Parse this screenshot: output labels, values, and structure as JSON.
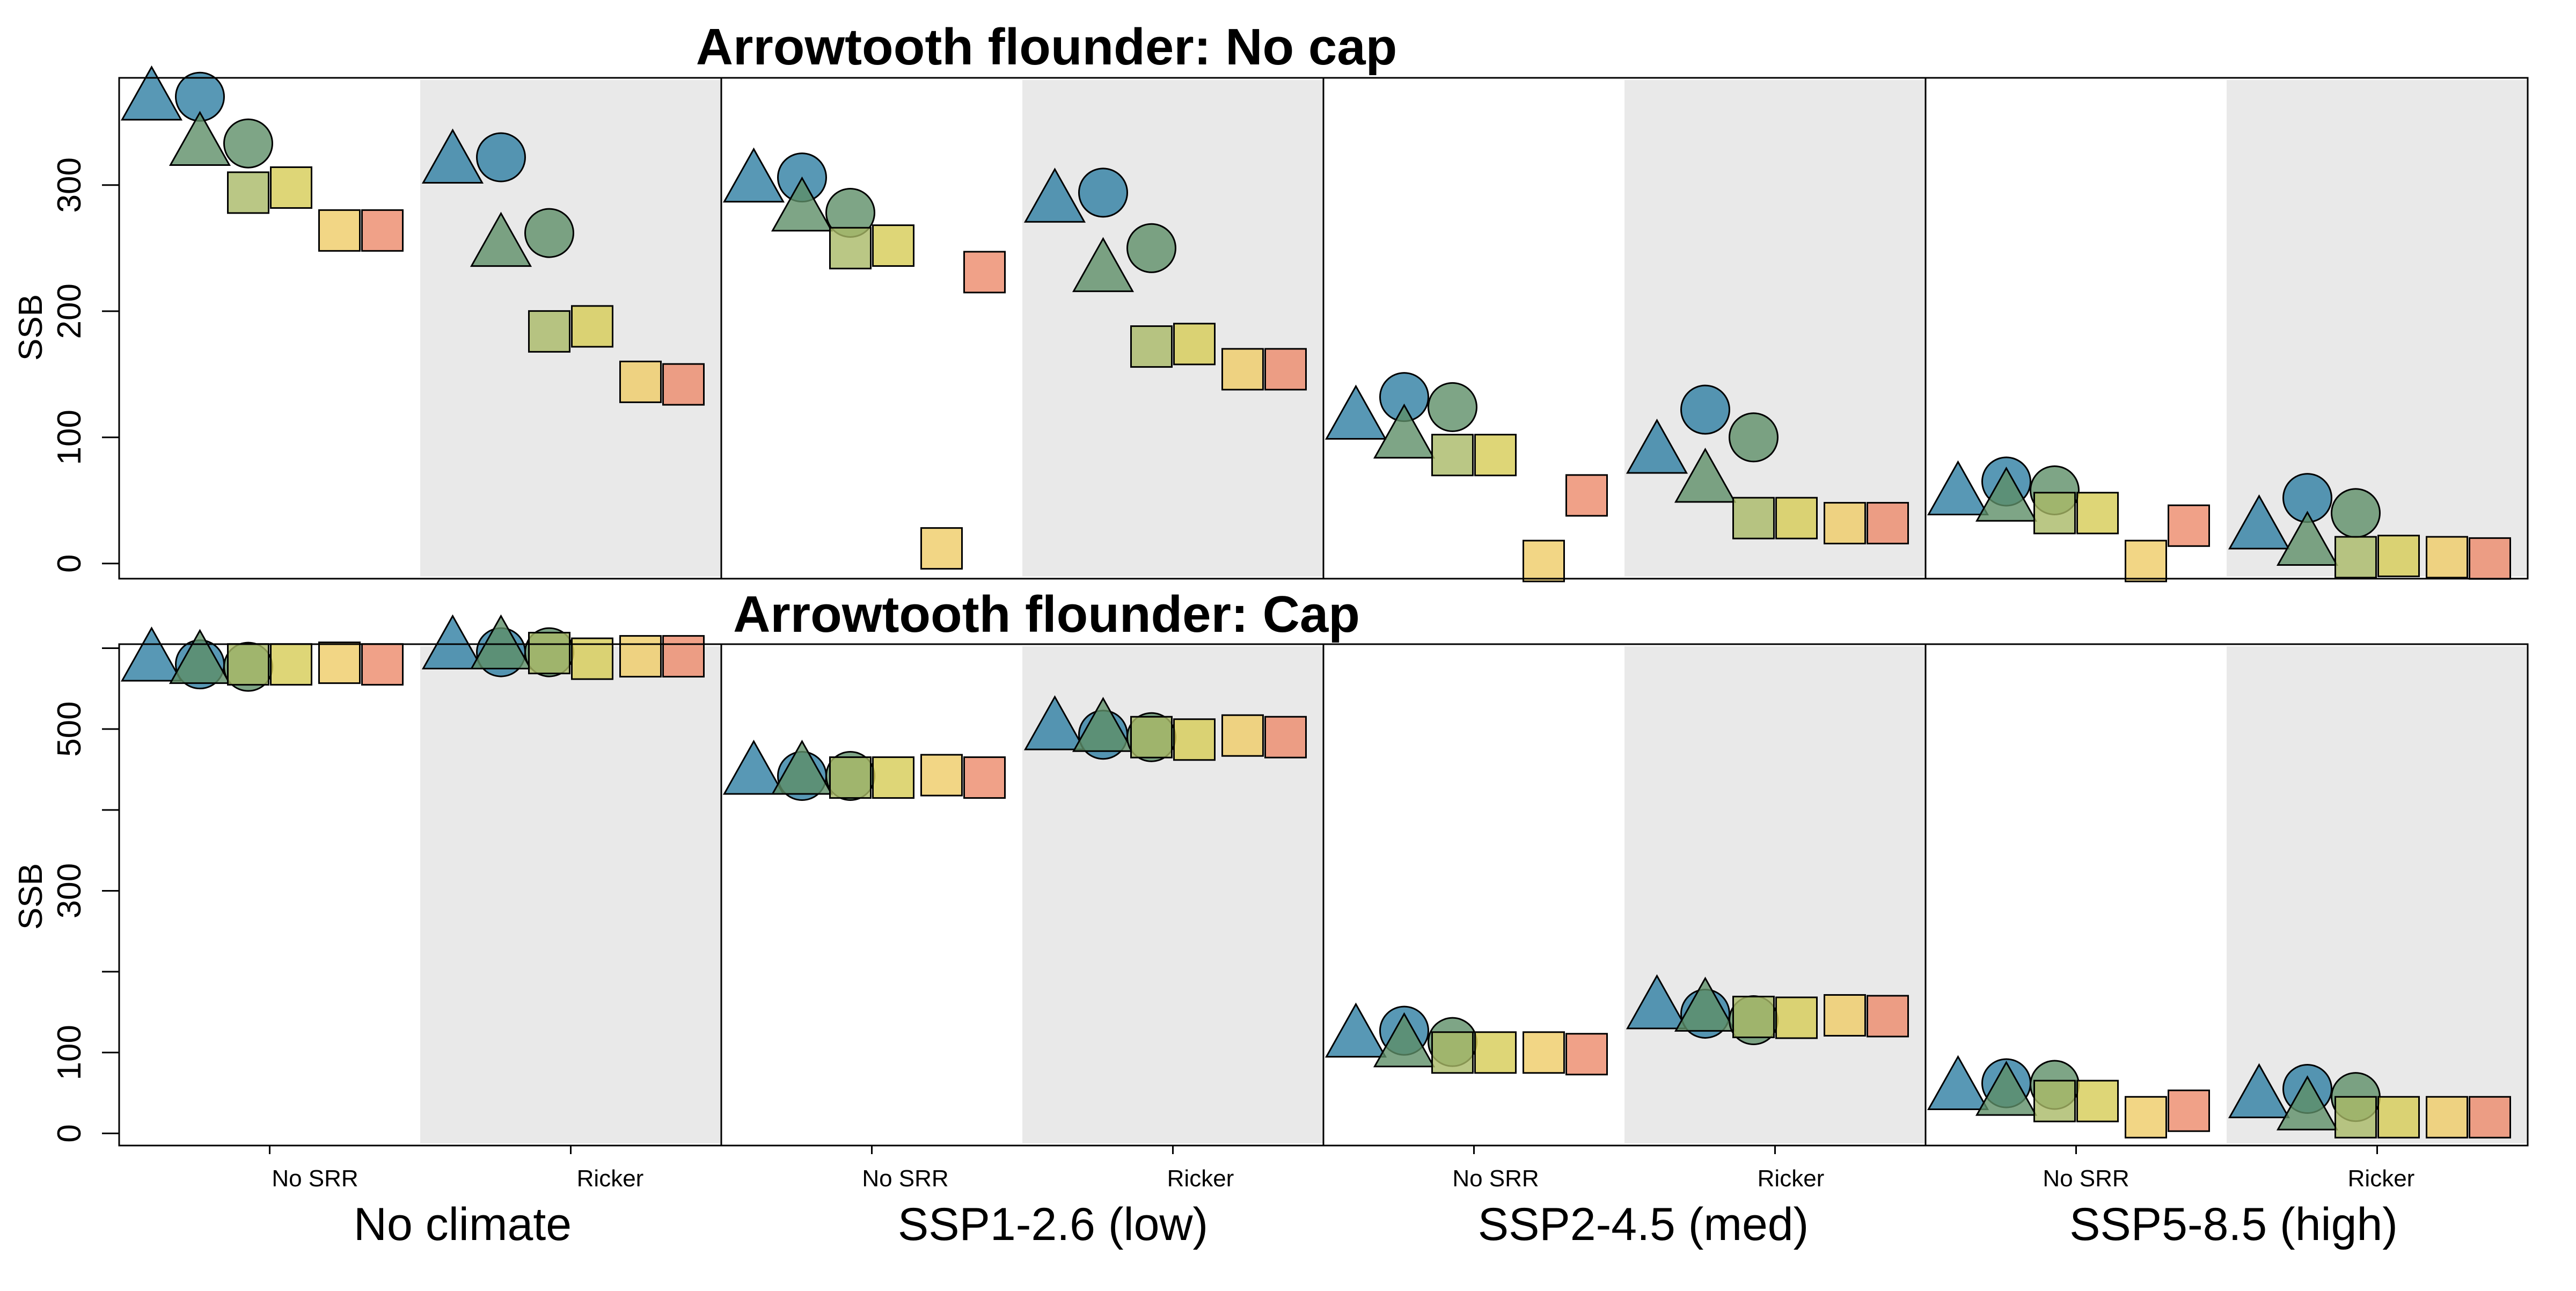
{
  "chart_data": [
    {
      "type": "scatter",
      "title": "Arrowtooth flounder: No cap",
      "ylabel": "SSB",
      "ylim": [
        -12,
        385
      ],
      "yticks": [
        0,
        100,
        200,
        300
      ],
      "ytick_labels": [
        "0",
        "100",
        "200",
        "300"
      ],
      "scenarios": [
        "No climate",
        "SSP1-2.6 (low)",
        "SSP2-4.5 (med)",
        "SSP5-8.5 (high)"
      ],
      "srr_types": [
        "No SRR",
        "Ricker"
      ],
      "shaded_srr": "Ricker",
      "series": [
        {
          "shape": "triangle",
          "color": "#2e7ea3",
          "values": [
            [
              368,
              318
            ],
            [
              303,
              287
            ],
            [
              115,
              88
            ],
            [
              55,
              28
            ]
          ]
        },
        {
          "shape": "circle",
          "color": "#2e7ea3",
          "values": [
            [
              370,
              322
            ],
            [
              306,
              294
            ],
            [
              132,
              122
            ],
            [
              65,
              52
            ]
          ]
        },
        {
          "shape": "triangle",
          "color": "#5e8f68",
          "values": [
            [
              332,
              252
            ],
            [
              280,
              232
            ],
            [
              100,
              65
            ],
            [
              50,
              15
            ]
          ]
        },
        {
          "shape": "circle",
          "color": "#5e8f68",
          "values": [
            [
              333,
              262
            ],
            [
              278,
              250
            ],
            [
              124,
              100
            ],
            [
              58,
              40
            ]
          ]
        },
        {
          "shape": "square",
          "color": "#a9b966",
          "values": [
            [
              294,
              184
            ],
            [
              250,
              172
            ],
            [
              86,
              36
            ],
            [
              40,
              5
            ]
          ]
        },
        {
          "shape": "square",
          "color": "#d6cc55",
          "values": [
            [
              298,
              188
            ],
            [
              252,
              174
            ],
            [
              86,
              36
            ],
            [
              40,
              6
            ]
          ]
        },
        {
          "shape": "square",
          "color": "#efcc66",
          "values": [
            [
              264,
              144
            ],
            [
              12,
              154
            ],
            [
              2,
              32
            ],
            [
              2,
              5
            ]
          ]
        },
        {
          "shape": "square",
          "color": "#ec8a6a",
          "values": [
            [
              264,
              142
            ],
            [
              231,
              154
            ],
            [
              54,
              32
            ],
            [
              30,
              4
            ]
          ]
        }
      ]
    },
    {
      "type": "scatter",
      "title": "Arrowtooth flounder: Cap",
      "ylabel": "SSB",
      "ylim": [
        -15,
        605
      ],
      "yticks": [
        0,
        100,
        200,
        300,
        400,
        500,
        600
      ],
      "ytick_labels": [
        "0",
        "100",
        "",
        "300",
        "",
        "500",
        ""
      ],
      "scenarios": [
        "No climate",
        "SSP1-2.6 (low)",
        "SSP2-4.5 (med)",
        "SSP5-8.5 (high)"
      ],
      "srr_types": [
        "No SRR",
        "Ricker"
      ],
      "shaded_srr": "Ricker",
      "series": [
        {
          "shape": "triangle",
          "color": "#2e7ea3",
          "values": [
            [
              585,
              600
            ],
            [
              445,
              500
            ],
            [
              120,
              155
            ],
            [
              55,
              45
            ]
          ]
        },
        {
          "shape": "circle",
          "color": "#2e7ea3",
          "values": [
            [
              580,
              595
            ],
            [
              442,
              493
            ],
            [
              127,
              148
            ],
            [
              62,
              55
            ]
          ]
        },
        {
          "shape": "triangle",
          "color": "#5e8f68",
          "values": [
            [
              582,
              600
            ],
            [
              445,
              498
            ],
            [
              108,
              152
            ],
            [
              48,
              30
            ]
          ]
        },
        {
          "shape": "circle",
          "color": "#5e8f68",
          "values": [
            [
              577,
              595
            ],
            [
              442,
              490
            ],
            [
              113,
              140
            ],
            [
              60,
              45
            ]
          ]
        },
        {
          "shape": "square",
          "color": "#a9b966",
          "values": [
            [
              580,
              594
            ],
            [
              440,
              490
            ],
            [
              100,
              144
            ],
            [
              40,
              20
            ]
          ]
        },
        {
          "shape": "square",
          "color": "#d6cc55",
          "values": [
            [
              580,
              587
            ],
            [
              440,
              487
            ],
            [
              100,
              143
            ],
            [
              40,
              20
            ]
          ]
        },
        {
          "shape": "square",
          "color": "#efcc66",
          "values": [
            [
              582,
              590
            ],
            [
              443,
              492
            ],
            [
              100,
              146
            ],
            [
              20,
              20
            ]
          ]
        },
        {
          "shape": "square",
          "color": "#ec8a6a",
          "values": [
            [
              580,
              590
            ],
            [
              440,
              490
            ],
            [
              98,
              145
            ],
            [
              28,
              20
            ]
          ]
        }
      ]
    }
  ]
}
